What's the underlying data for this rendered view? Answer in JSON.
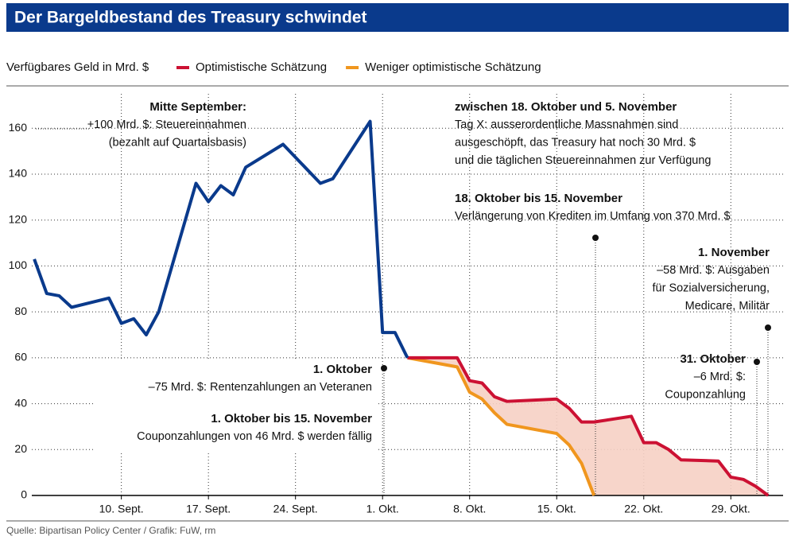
{
  "chart_data": {
    "type": "line",
    "title": "Der Bargeldbestand des Treasury schwindet",
    "ylabel": "Verfügbares Geld in Mrd. $",
    "source": "Quelle: Bipartisan Policy Center  / Grafik: FuW, rm",
    "xlim": [
      2.8,
      63.2
    ],
    "xticks": [
      {
        "value": 10,
        "label": "10. Sept."
      },
      {
        "value": 17,
        "label": "17. Sept."
      },
      {
        "value": 24,
        "label": "24. Sept."
      },
      {
        "value": 31,
        "label": "1. Okt."
      },
      {
        "value": 38,
        "label": "8. Okt."
      },
      {
        "value": 45,
        "label": "15. Okt."
      },
      {
        "value": 52,
        "label": "22. Okt."
      },
      {
        "value": 59,
        "label": "29. Okt."
      }
    ],
    "ylim": [
      0,
      175
    ],
    "yticks": [
      0,
      20,
      40,
      60,
      80,
      100,
      120,
      140,
      160
    ],
    "grid": true,
    "series": [
      {
        "color": "#0a3a8c",
        "x": [
          3,
          4,
          5,
          6,
          9,
          10,
          11,
          12,
          13,
          16,
          17,
          18,
          19,
          20,
          23,
          26,
          27,
          30,
          31,
          32,
          33
        ],
        "values": [
          103,
          88,
          87,
          82,
          86,
          75,
          77,
          70,
          80,
          136,
          128,
          135,
          131,
          143,
          153,
          136,
          138,
          163,
          71,
          71,
          60
        ]
      },
      {
        "name": "Optimistische Schätzung",
        "color": "#cc1133",
        "x": [
          33,
          37,
          38,
          39,
          40,
          41,
          43,
          45,
          46,
          47,
          48,
          51,
          52,
          53,
          54,
          55,
          58,
          59,
          60,
          61,
          62
        ],
        "values": [
          60,
          60,
          50,
          49,
          43,
          41,
          41.5,
          42,
          38,
          32,
          32,
          34.5,
          23,
          23,
          20,
          15.5,
          15,
          8,
          7,
          4,
          0
        ]
      },
      {
        "name": "Weniger optimistische Schätzung",
        "color": "#f0961e",
        "x": [
          33,
          37,
          38,
          39,
          40,
          41,
          45,
          46,
          47,
          48
        ],
        "values": [
          60,
          56,
          45,
          42,
          36,
          31,
          27,
          22,
          14,
          0
        ]
      }
    ],
    "annotations": [
      {
        "head": "Mitte September:",
        "lines": [
          "+100 Mrd. $: Steuereinnahmen",
          "(bezahlt auf Quartalsbasis)"
        ]
      },
      {
        "head": "zwischen 18. Oktober und 5. November",
        "lines": [
          "Tag X: ausserordentliche Massnahmen sind",
          "ausgeschöpft, das Treasury hat noch 30 Mrd. $",
          "und die täglichen Steuereinnahmen zur Verfügung"
        ]
      },
      {
        "head": "18. Oktober bis 15. November",
        "lines": [
          "Verlängerung von Krediten im Umfang von 370 Mrd. $"
        ]
      },
      {
        "head": "1. November",
        "lines": [
          "–58 Mrd. $: Ausgaben",
          "für Sozialversicherung,",
          "Medicare, Militär"
        ]
      },
      {
        "head": "31. Oktober",
        "lines": [
          "–6 Mrd. $:",
          "Couponzahlung"
        ]
      },
      {
        "head": "1. Oktober",
        "lines": [
          "–75 Mrd. $: Rentenzahlungen an Veteranen"
        ]
      },
      {
        "head": "1. Oktober bis 15. November",
        "lines": [
          "Couponzahlungen von 46 Mrd. $ werden fällig"
        ]
      }
    ]
  }
}
